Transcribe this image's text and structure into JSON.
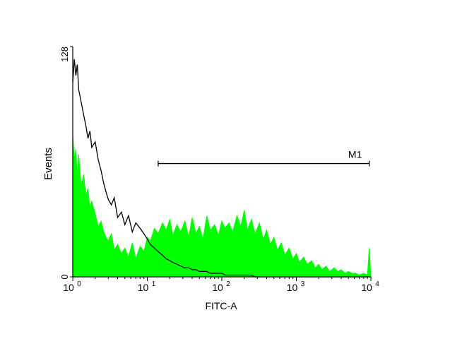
{
  "chart_data": {
    "type": "area",
    "xlabel": "FITC-A",
    "ylabel": "Events",
    "x_scale": "log",
    "xlim": [
      1,
      10000
    ],
    "ylim": [
      0,
      128
    ],
    "x_ticks": [
      {
        "base": "10",
        "exp": "0"
      },
      {
        "base": "10",
        "exp": "1"
      },
      {
        "base": "10",
        "exp": "2"
      },
      {
        "base": "10",
        "exp": "3"
      },
      {
        "base": "10",
        "exp": "4"
      }
    ],
    "y_ticks": [
      "0",
      "128"
    ],
    "grid": false,
    "gate": {
      "label": "M1",
      "x_start": 14,
      "x_end": 9500,
      "y": 63
    },
    "series": [
      {
        "style": "filled",
        "color": "#00ff00",
        "x": [
          1,
          1.05,
          1.1,
          1.15,
          1.2,
          1.3,
          1.4,
          1.5,
          1.6,
          1.7,
          1.8,
          2,
          2.2,
          2.4,
          2.6,
          2.8,
          3,
          3.3,
          3.6,
          4,
          4.5,
          5,
          5.6,
          6.3,
          7,
          8,
          9,
          10,
          11,
          12.5,
          14,
          16,
          18,
          20,
          22,
          25,
          28,
          32,
          36,
          40,
          45,
          50,
          56,
          63,
          70,
          80,
          90,
          100,
          110,
          125,
          140,
          160,
          180,
          200,
          220,
          250,
          280,
          320,
          360,
          400,
          450,
          500,
          560,
          630,
          700,
          800,
          900,
          1000,
          1100,
          1250,
          1400,
          1600,
          1800,
          2000,
          2200,
          2500,
          2800,
          3200,
          3600,
          4000,
          4500,
          5000,
          5600,
          6300,
          7000,
          8000,
          9000,
          9500,
          10000
        ],
        "values": [
          80,
          64,
          71,
          55,
          68,
          50,
          57,
          45,
          49,
          38,
          42,
          35,
          28,
          31,
          25,
          22,
          20,
          24,
          15,
          18,
          13,
          16,
          11,
          19,
          10,
          17,
          14,
          22,
          20,
          27,
          24,
          30,
          26,
          32,
          23,
          29,
          25,
          31,
          22,
          33,
          24,
          28,
          21,
          34,
          26,
          29,
          23,
          31,
          27,
          30,
          25,
          34,
          28,
          37,
          26,
          32,
          24,
          30,
          21,
          26,
          18,
          22,
          15,
          19,
          12,
          16,
          10,
          13,
          8,
          11,
          7,
          9,
          5,
          7,
          4,
          6,
          3,
          5,
          3,
          4,
          2,
          3,
          2,
          2,
          1,
          2,
          1,
          16,
          0
        ]
      },
      {
        "style": "outline",
        "color": "#000000",
        "x": [
          1,
          1.05,
          1.1,
          1.15,
          1.2,
          1.3,
          1.4,
          1.5,
          1.6,
          1.7,
          1.8,
          2,
          2.2,
          2.4,
          2.6,
          2.8,
          3,
          3.3,
          3.6,
          4,
          4.5,
          5,
          5.6,
          6.3,
          7,
          8,
          9,
          10,
          11,
          12.5,
          14,
          16,
          18,
          20,
          22,
          25,
          28,
          32,
          36,
          40,
          45,
          50,
          56,
          63,
          70,
          80,
          90,
          100,
          110,
          125,
          140,
          160,
          180,
          200,
          220,
          250,
          280,
          320,
          360,
          400,
          450,
          500,
          560,
          630,
          700,
          800,
          900,
          1000,
          1100,
          1250,
          1400,
          1600,
          1800,
          2000,
          2200,
          2500,
          2800,
          3200,
          3600,
          4000,
          4500,
          5000,
          5600,
          6300,
          7000,
          8000,
          9000,
          9500,
          10000
        ],
        "values": [
          108,
          121,
          112,
          118,
          104,
          97,
          90,
          84,
          77,
          81,
          72,
          75,
          65,
          59,
          52,
          47,
          43,
          40,
          44,
          33,
          36,
          29,
          34,
          25,
          30,
          27,
          24,
          21,
          18,
          16,
          14,
          12,
          10,
          9,
          8,
          7,
          6,
          5,
          5,
          4,
          4,
          3,
          3,
          3,
          2,
          2,
          2,
          2,
          1,
          1,
          1,
          1,
          1,
          1,
          1,
          1,
          0,
          0,
          0,
          0,
          0,
          0,
          0,
          0,
          0,
          0,
          0,
          0,
          0,
          0,
          0,
          0,
          0,
          0,
          0,
          0,
          0,
          0,
          0,
          0,
          0,
          0,
          0,
          0,
          0,
          0,
          0,
          0,
          0
        ]
      }
    ]
  }
}
